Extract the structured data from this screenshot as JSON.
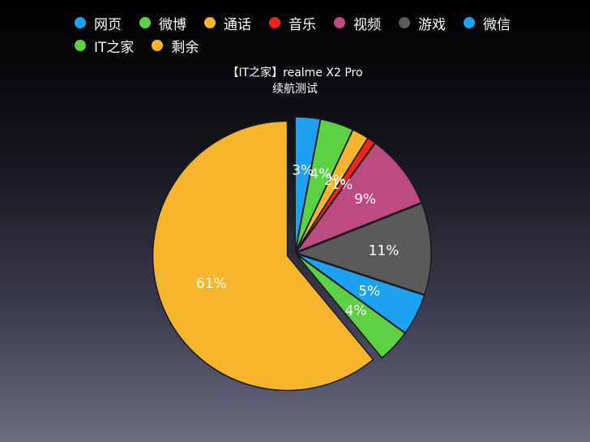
{
  "chart_data": {
    "type": "pie",
    "title": "【IT之家】realme X2 Pro",
    "subtitle": "续航测试",
    "legend_position": "top",
    "slices": [
      {
        "label": "网页",
        "value": 3,
        "display": "3%",
        "color": "#1da1f2"
      },
      {
        "label": "微博",
        "value": 4,
        "display": "4%",
        "color": "#5bd143"
      },
      {
        "label": "通话",
        "value": 2,
        "display": "2%",
        "color": "#f7b52c"
      },
      {
        "label": "音乐",
        "value": 1,
        "display": "1%",
        "color": "#f5231d"
      },
      {
        "label": "视频",
        "value": 9,
        "display": "9%",
        "color": "#bd4a80"
      },
      {
        "label": "游戏",
        "value": 11,
        "display": "11%",
        "color": "#5a5a5a"
      },
      {
        "label": "微信",
        "value": 5,
        "display": "5%",
        "color": "#1da1f2"
      },
      {
        "label": "IT之家",
        "value": 4,
        "display": "4%",
        "color": "#5bd143"
      },
      {
        "label": "剩余",
        "value": 61,
        "display": "61%",
        "color": "#f7b52c"
      }
    ]
  }
}
